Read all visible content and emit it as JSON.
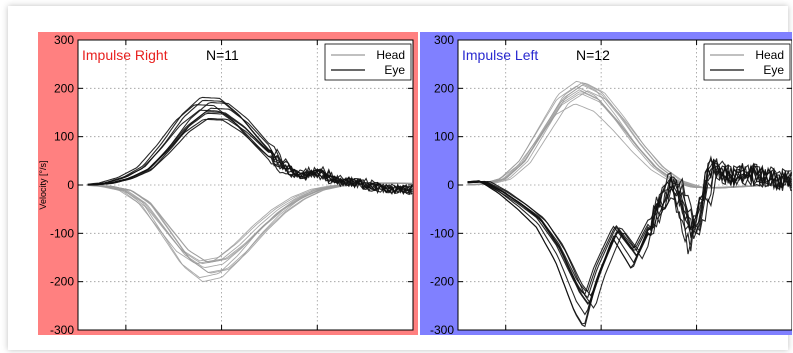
{
  "chart_data": [
    {
      "type": "line",
      "title": "Impulse Right",
      "annotation": "N=11",
      "ylabel": "Velocity [°/s]",
      "xlabel": "",
      "xlim": [
        -50,
        300
      ],
      "ylim": [
        -300,
        300
      ],
      "xticks": [
        0,
        100,
        200,
        300
      ],
      "yticks": [
        -300,
        -200,
        -100,
        0,
        100,
        200,
        300
      ],
      "grid": true,
      "legend": {
        "placement": "top-right",
        "entries": [
          "Head",
          "Eye"
        ]
      },
      "background_color": "#ff8080",
      "title_color": "#e8211f",
      "series": [
        {
          "name": "Head",
          "color": "#9a9a9a",
          "x": [
            -40,
            -20,
            0,
            20,
            40,
            60,
            80,
            100,
            120,
            140,
            160,
            180,
            200,
            220,
            240,
            260,
            280,
            300
          ],
          "y": [
            0,
            -3,
            -12,
            -40,
            -95,
            -150,
            -178,
            -170,
            -135,
            -92,
            -55,
            -28,
            -10,
            -2,
            2,
            4,
            4,
            3
          ]
        },
        {
          "name": "Eye",
          "color": "#111111",
          "x": [
            -40,
            -20,
            0,
            20,
            40,
            60,
            80,
            100,
            120,
            140,
            160,
            180,
            200,
            220,
            240,
            260,
            280,
            300
          ],
          "y": [
            0,
            4,
            15,
            35,
            78,
            128,
            160,
            158,
            128,
            85,
            45,
            18,
            28,
            8,
            5,
            -6,
            -8,
            -10
          ]
        }
      ]
    },
    {
      "type": "line",
      "title": "Impulse Left",
      "annotation": "N=12",
      "xlabel": "",
      "ylabel": "",
      "xlim": [
        -50,
        300
      ],
      "ylim": [
        -300,
        300
      ],
      "xticks": [
        0,
        100,
        200,
        300
      ],
      "yticks": [
        -300,
        -200,
        -100,
        0,
        100,
        200,
        300
      ],
      "grid": true,
      "legend": {
        "placement": "top-right",
        "entries": [
          "Head",
          "Eye"
        ]
      },
      "background_color": "#8080ff",
      "title_color": "#2a2ad0",
      "series": [
        {
          "name": "Head",
          "color": "#9a9a9a",
          "x": [
            -40,
            -20,
            0,
            20,
            40,
            60,
            80,
            100,
            120,
            140,
            160,
            180,
            200,
            220,
            240,
            260,
            280,
            300
          ],
          "y": [
            0,
            2,
            12,
            45,
            105,
            165,
            190,
            172,
            128,
            78,
            35,
            8,
            -4,
            -6,
            -4,
            -2,
            0,
            0
          ]
        },
        {
          "name": "Eye",
          "color": "#111111",
          "x": [
            -40,
            -20,
            0,
            20,
            40,
            60,
            80,
            90,
            100,
            120,
            140,
            160,
            180,
            200,
            220,
            240,
            260,
            280,
            300
          ],
          "y": [
            5,
            8,
            -15,
            -45,
            -80,
            -145,
            -240,
            -270,
            -200,
            -100,
            -160,
            -70,
            10,
            -120,
            40,
            20,
            25,
            15,
            10
          ]
        }
      ]
    }
  ]
}
